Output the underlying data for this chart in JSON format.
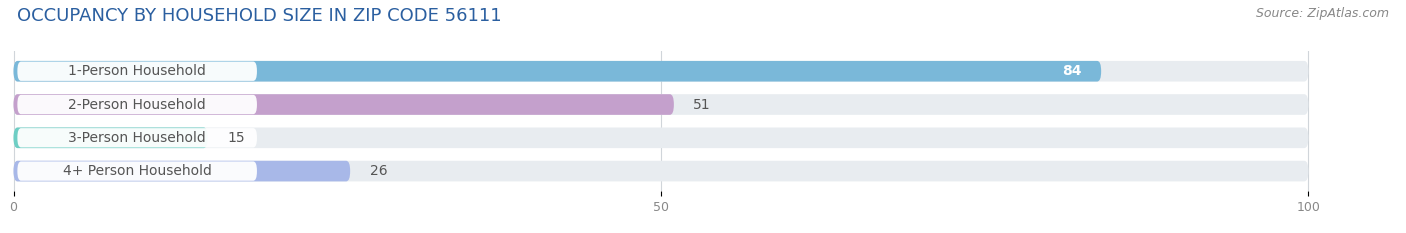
{
  "title": "OCCUPANCY BY HOUSEHOLD SIZE IN ZIP CODE 56111",
  "source": "Source: ZipAtlas.com",
  "categories": [
    "1-Person Household",
    "2-Person Household",
    "3-Person Household",
    "4+ Person Household"
  ],
  "values": [
    84,
    51,
    15,
    26
  ],
  "bar_colors": [
    "#7ab8d9",
    "#c4a0cc",
    "#6ecec4",
    "#a8b8e8"
  ],
  "value_inside_bar": [
    true,
    false,
    false,
    false
  ],
  "background_color": "#ffffff",
  "bar_track_color": "#e8ecf0",
  "title_fontsize": 13,
  "source_fontsize": 9,
  "label_fontsize": 10,
  "value_fontsize": 10,
  "xticks": [
    0,
    50,
    100
  ],
  "xlim_max": 100
}
